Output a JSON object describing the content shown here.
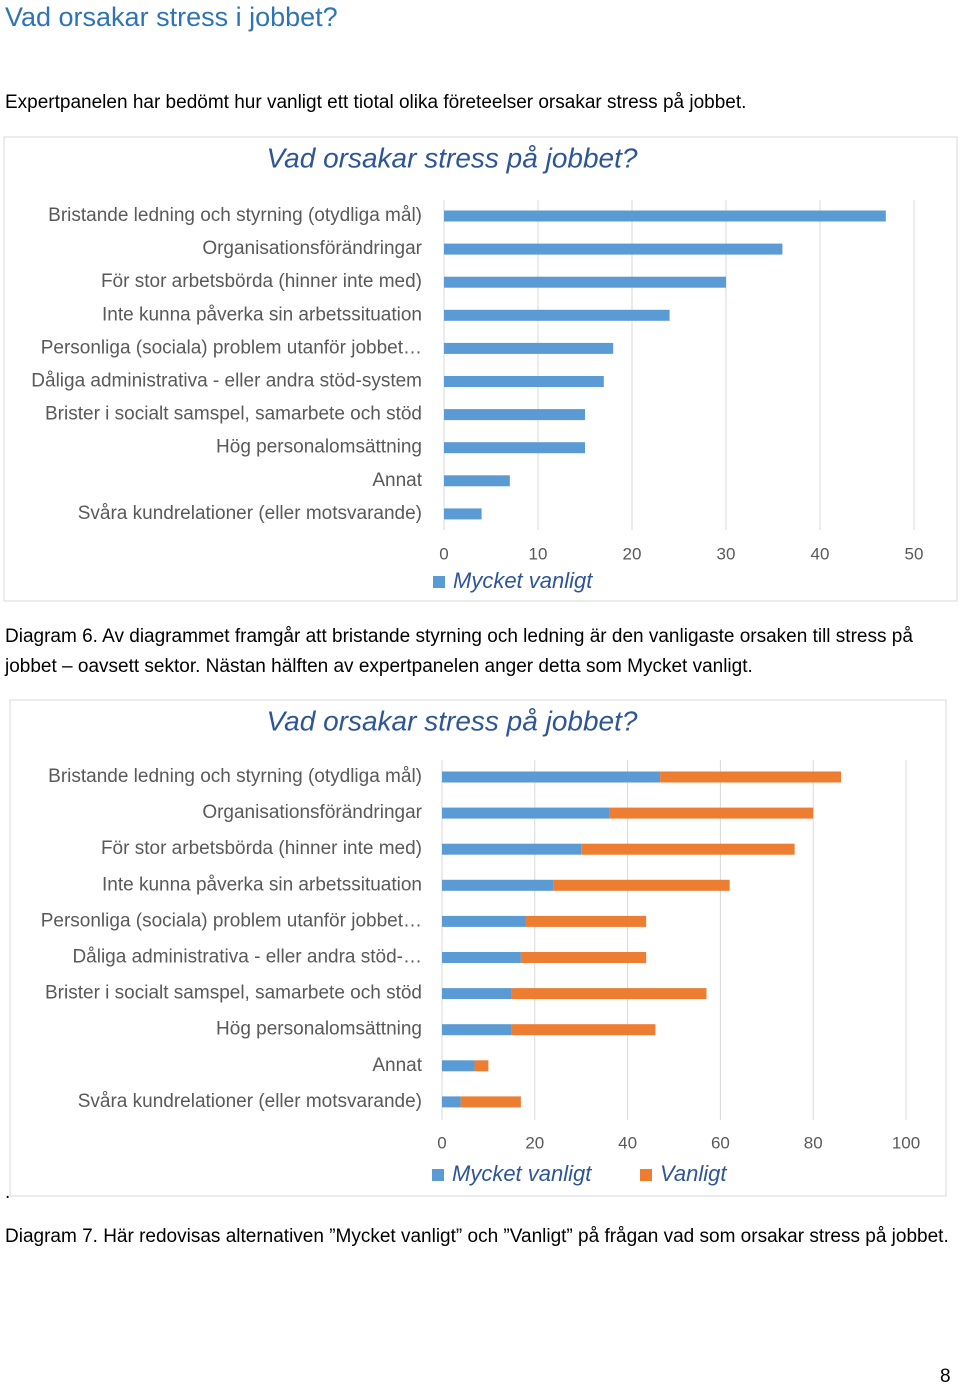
{
  "header": {
    "title": "Vad orsakar stress i jobbet?"
  },
  "intro": "Expertpanelen har bedömt hur vanligt ett tiotal olika företeelser orsakar stress på jobbet.",
  "chart_data": [
    {
      "type": "bar",
      "orientation": "horizontal",
      "stacked": false,
      "title": "Vad orsakar stress på jobbet?",
      "categories": [
        "Bristande ledning och styrning (otydliga mål)",
        "Organisationsförändringar",
        "För stor arbetsbörda (hinner inte med)",
        "Inte kunna påverka sin arbetssituation",
        "Personliga (sociala) problem utanför jobbet…",
        "Dåliga administrativa - eller andra stöd-system",
        "Brister i socialt samspel, samarbete och stöd",
        "Hög personalomsättning",
        "Annat",
        "Svåra kundrelationer (eller motsvarande)"
      ],
      "series": [
        {
          "name": "Mycket vanligt",
          "color": "#5b9bd5",
          "values": [
            47,
            36,
            30,
            24,
            18,
            17,
            15,
            15,
            7,
            4
          ]
        }
      ],
      "xlim": [
        0,
        50
      ],
      "xticks": [
        0,
        10,
        20,
        30,
        40,
        50
      ],
      "grid": true,
      "legend": "bottom"
    },
    {
      "type": "bar",
      "orientation": "horizontal",
      "stacked": true,
      "title": "Vad orsakar stress på jobbet?",
      "categories": [
        "Bristande ledning och styrning (otydliga mål)",
        "Organisationsförändringar",
        "För stor arbetsbörda (hinner inte med)",
        "Inte kunna påverka sin arbetssituation",
        "Personliga (sociala) problem utanför jobbet…",
        "Dåliga administrativa - eller andra stöd-…",
        "Brister i socialt samspel, samarbete och stöd",
        "Hög personalomsättning",
        "Annat",
        "Svåra kundrelationer (eller motsvarande)"
      ],
      "series": [
        {
          "name": "Mycket vanligt",
          "color": "#5b9bd5",
          "values": [
            47,
            36,
            30,
            24,
            18,
            17,
            15,
            15,
            7,
            4
          ]
        },
        {
          "name": "Vanligt",
          "color": "#ed7d31",
          "values": [
            39,
            44,
            46,
            38,
            26,
            27,
            42,
            31,
            3,
            13
          ]
        }
      ],
      "xlim": [
        0,
        100
      ],
      "xticks": [
        0,
        20,
        40,
        60,
        80,
        100
      ],
      "grid": true,
      "legend": "bottom"
    }
  ],
  "captions": [
    "Diagram 6. Av diagrammet framgår att bristande styrning och ledning är den vanligaste orsaken till stress på jobbet – oavsett sektor. Nästan hälften av expertpanelen anger detta som Mycket vanligt.",
    "Diagram 7.  Här redovisas alternativen ”Mycket vanligt” och ”Vanligt” på frågan vad som orsakar stress på jobbet."
  ],
  "stray_mark": ".",
  "page_number": "8"
}
